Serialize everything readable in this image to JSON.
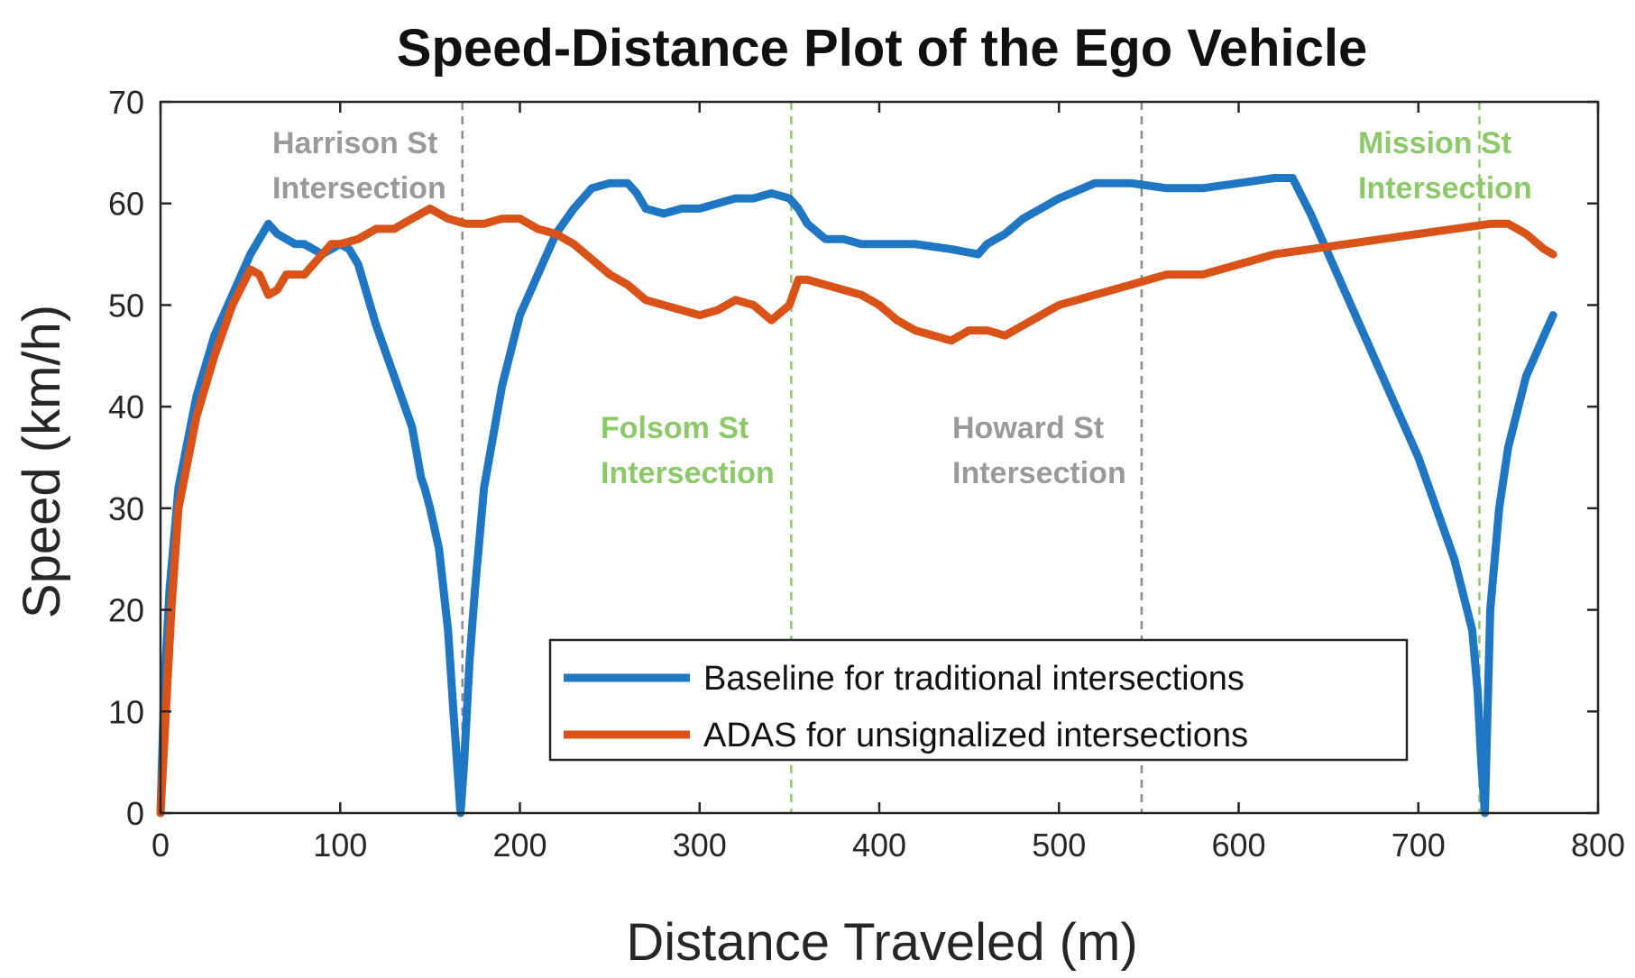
{
  "chart_data": {
    "type": "line",
    "title": "Speed-Distance Plot of the Ego Vehicle",
    "xlabel": "Distance Traveled (m)",
    "ylabel": "Speed (km/h)",
    "xlim": [
      0,
      800
    ],
    "ylim": [
      0,
      70
    ],
    "xticks": [
      0,
      100,
      200,
      300,
      400,
      500,
      600,
      700,
      800
    ],
    "yticks": [
      0,
      10,
      20,
      30,
      40,
      50,
      60,
      70
    ],
    "grid": false,
    "legend_position": "bottom-right",
    "series": [
      {
        "name": "Baseline for traditional intersections",
        "color": "#1f77c4",
        "x": [
          0,
          2,
          5,
          10,
          20,
          30,
          40,
          50,
          60,
          65,
          70,
          75,
          80,
          90,
          100,
          105,
          110,
          120,
          130,
          140,
          145,
          147,
          150,
          155,
          160,
          163,
          165,
          167,
          169,
          172,
          175,
          180,
          190,
          200,
          210,
          220,
          230,
          240,
          250,
          260,
          265,
          270,
          280,
          290,
          300,
          310,
          320,
          330,
          340,
          350,
          355,
          360,
          370,
          380,
          390,
          400,
          420,
          440,
          455,
          460,
          470,
          480,
          500,
          520,
          540,
          560,
          580,
          600,
          620,
          630,
          640,
          660,
          680,
          700,
          720,
          730,
          733,
          735,
          737,
          740,
          745,
          750,
          760,
          770,
          775
        ],
        "y": [
          0,
          12,
          22,
          32,
          41,
          47,
          51,
          55,
          58,
          57,
          56.5,
          56,
          56,
          55,
          56,
          55.5,
          54,
          48,
          43,
          38,
          33,
          32,
          30,
          26,
          18,
          10,
          5,
          0,
          5,
          15,
          22,
          32,
          42,
          49,
          53,
          57,
          59.5,
          61.5,
          62,
          62,
          61,
          59.5,
          59,
          59.5,
          59.5,
          60,
          60.5,
          60.5,
          61,
          60.5,
          59.5,
          58,
          56.5,
          56.5,
          56,
          56,
          56,
          55.5,
          55,
          56,
          57,
          58.5,
          60.5,
          62,
          62,
          61.5,
          61.5,
          62,
          62.5,
          62.5,
          59,
          51,
          43,
          35,
          25,
          18,
          12,
          5,
          0,
          20,
          30,
          36,
          43,
          47,
          49
        ]
      },
      {
        "name": "ADAS for unsignalized intersections",
        "color": "#d95319",
        "x": [
          0,
          3,
          6,
          10,
          20,
          30,
          40,
          50,
          55,
          60,
          65,
          70,
          75,
          80,
          85,
          90,
          95,
          100,
          110,
          120,
          130,
          140,
          150,
          155,
          160,
          170,
          180,
          190,
          200,
          210,
          220,
          230,
          240,
          250,
          260,
          270,
          280,
          290,
          300,
          310,
          320,
          330,
          340,
          350,
          355,
          360,
          370,
          380,
          390,
          400,
          410,
          420,
          430,
          440,
          450,
          460,
          470,
          480,
          490,
          500,
          520,
          540,
          560,
          580,
          600,
          620,
          640,
          660,
          680,
          700,
          720,
          740,
          750,
          760,
          770,
          775
        ],
        "y": [
          0,
          10,
          20,
          30,
          39,
          45,
          50,
          53.5,
          53,
          51,
          51.5,
          53,
          53,
          53,
          54,
          55,
          56,
          56,
          56.5,
          57.5,
          57.5,
          58.5,
          59.5,
          59,
          58.5,
          58,
          58,
          58.5,
          58.5,
          57.5,
          57,
          56,
          54.5,
          53,
          52,
          50.5,
          50,
          49.5,
          49,
          49.5,
          50.5,
          50,
          48.5,
          50,
          52.5,
          52.5,
          52,
          51.5,
          51,
          50,
          48.5,
          47.5,
          47,
          46.5,
          47.5,
          47.5,
          47,
          48,
          49,
          50,
          51,
          52,
          53,
          53,
          54,
          55,
          55.5,
          56,
          56.5,
          57,
          57.5,
          58,
          58,
          57,
          55.5,
          55
        ]
      }
    ],
    "vlines": [
      {
        "x": 168,
        "color": "#8c8c8c",
        "label_line1": "Harrison St",
        "label_line2": "Intersection"
      },
      {
        "x": 351,
        "color": "#8dc86a",
        "label_line1": "Folsom St",
        "label_line2": "Intersection"
      },
      {
        "x": 546,
        "color": "#8c8c8c",
        "label_line1": "Howard St",
        "label_line2": "Intersection"
      },
      {
        "x": 734,
        "color": "#8dc86a",
        "label_line1": "Mission St",
        "label_line2": "Intersection"
      }
    ]
  }
}
